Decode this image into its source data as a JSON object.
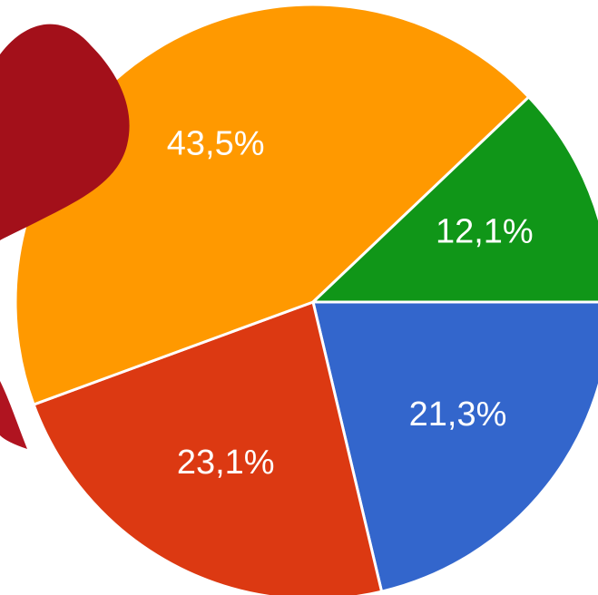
{
  "chart_data": {
    "type": "pie",
    "values": [
      21.3,
      23.1,
      43.5,
      12.1
    ],
    "value_labels": [
      "21,3%",
      "23,1%",
      "43,5%",
      "12,1%"
    ],
    "colors": [
      "#3366cc",
      "#dc3912",
      "#ff9900",
      "#109618"
    ]
  }
}
